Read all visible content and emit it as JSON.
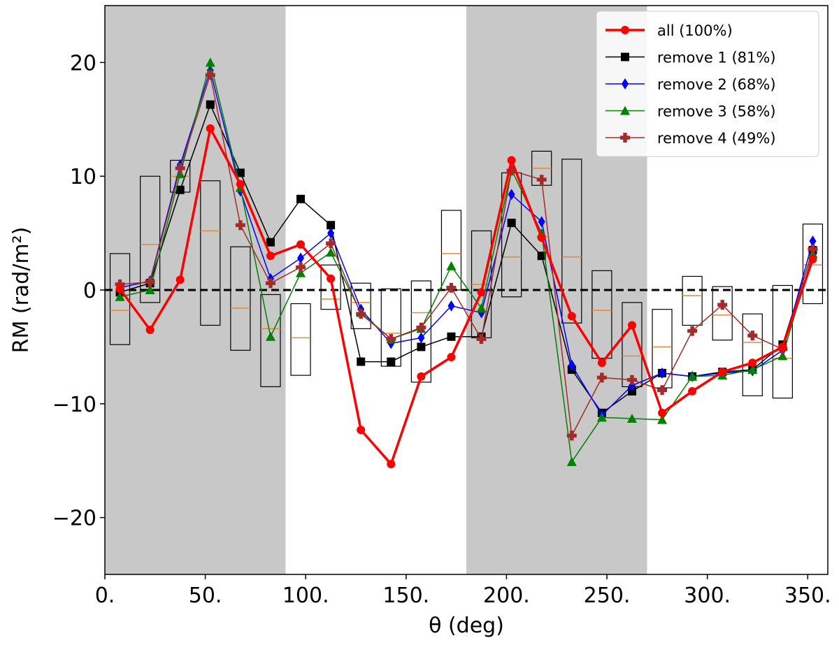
{
  "chart_data": {
    "type": "line",
    "xlabel": "θ (deg)",
    "ylabel": "RM (rad/m²)",
    "xlim": [
      0,
      360
    ],
    "ylim": [
      -25,
      25
    ],
    "xticks": [
      0,
      50,
      100,
      150,
      200,
      250,
      300,
      350
    ],
    "xtick_labels": [
      "0.",
      "50.",
      "100.",
      "150.",
      "200.",
      "250.",
      "300.",
      "350."
    ],
    "yticks": [
      -20,
      -10,
      0,
      10,
      20
    ],
    "ytick_labels": [
      "−20",
      "−10",
      "0",
      "10",
      "20"
    ],
    "shaded_ranges": [
      [
        0,
        90
      ],
      [
        180,
        270
      ]
    ],
    "zero_line": 0,
    "legend_position": "top-right",
    "colors": {
      "shade": "#c8c8c8",
      "box_edge": "#000000",
      "median": "#e08a3c",
      "zero_line": "#000000"
    },
    "boxes": {
      "x": [
        7.5,
        22.5,
        37.5,
        52.5,
        67.5,
        82.5,
        97.5,
        112.5,
        127.5,
        142.5,
        157.5,
        172.5,
        187.5,
        202.5,
        217.5,
        232.5,
        247.5,
        262.5,
        277.5,
        292.5,
        307.5,
        322.5,
        337.5,
        352.5
      ],
      "low": [
        -4.8,
        -1.1,
        8.6,
        -3.1,
        -5.3,
        -8.5,
        -7.5,
        -1.7,
        -3.4,
        -6.7,
        -8.1,
        0.0,
        -4.2,
        -0.6,
        9.2,
        -2.9,
        -6.0,
        -8.5,
        -8.6,
        -3.1,
        -4.4,
        -9.3,
        -9.5,
        -1.2
      ],
      "high": [
        3.2,
        10.0,
        11.4,
        9.6,
        3.8,
        -0.4,
        -1.2,
        2.2,
        0.6,
        0.1,
        0.8,
        7.0,
        5.2,
        10.3,
        12.2,
        11.5,
        1.7,
        -1.1,
        -1.7,
        1.2,
        0.3,
        -2.1,
        0.4,
        5.8
      ],
      "median": [
        -1.8,
        4.0,
        10.0,
        5.2,
        -1.6,
        -3.4,
        -4.2,
        -0.8,
        -1.1,
        -3.8,
        -2.0,
        3.2,
        0.5,
        2.9,
        10.7,
        2.9,
        -1.8,
        -5.8,
        -5.0,
        -0.5,
        -2.2,
        -4.6,
        -6.0,
        2.2
      ]
    },
    "series": [
      {
        "name": "all (100%)",
        "color": "#ff0000",
        "marker": "circle",
        "line_width": 3.5,
        "x": [
          7.5,
          22.5,
          37.5,
          52.5,
          67.5,
          82.5,
          97.5,
          112.5,
          127.5,
          142.5,
          157.5,
          172.5,
          187.5,
          202.5,
          217.5,
          232.5,
          247.5,
          262.5,
          277.5,
          292.5,
          307.5,
          322.5,
          337.5,
          352.5
        ],
        "y": [
          0.1,
          -3.5,
          0.9,
          14.2,
          9.3,
          3.0,
          4.0,
          1.0,
          -12.3,
          -15.3,
          -7.6,
          -5.9,
          -0.2,
          11.4,
          4.6,
          -2.3,
          -6.4,
          -3.1,
          -10.8,
          -8.9,
          -7.2,
          -6.4,
          -5.0,
          2.7
        ]
      },
      {
        "name": "remove 1 (81%)",
        "color": "#000000",
        "marker": "square",
        "line_width": 1.5,
        "x": [
          7.5,
          22.5,
          37.5,
          52.5,
          67.5,
          82.5,
          97.5,
          112.5,
          127.5,
          142.5,
          157.5,
          172.5,
          187.5,
          202.5,
          217.5,
          232.5,
          247.5,
          262.5,
          277.5,
          292.5,
          307.5,
          322.5,
          337.5,
          352.5
        ],
        "y": [
          -0.2,
          0.6,
          8.8,
          16.3,
          10.3,
          4.2,
          8.0,
          5.7,
          -6.3,
          -6.3,
          -5.0,
          -4.1,
          -4.1,
          5.9,
          3.0,
          -7.0,
          -10.8,
          -8.9,
          -7.3,
          -7.6,
          -7.2,
          -7.0,
          -4.8,
          3.5
        ]
      },
      {
        "name": "remove 2 (68%)",
        "color": "#0000ff",
        "marker": "diamond",
        "line_width": 1.5,
        "x": [
          7.5,
          22.5,
          37.5,
          52.5,
          67.5,
          82.5,
          97.5,
          112.5,
          127.5,
          142.5,
          157.5,
          172.5,
          187.5,
          202.5,
          217.5,
          232.5,
          247.5,
          262.5,
          277.5,
          292.5,
          307.5,
          322.5,
          337.5,
          352.5
        ],
        "y": [
          0.2,
          0.8,
          11.0,
          19.3,
          8.7,
          1.0,
          2.8,
          5.0,
          -1.7,
          -4.7,
          -4.2,
          -1.4,
          -2.0,
          8.4,
          6.0,
          -6.6,
          -11.0,
          -8.4,
          -7.3,
          -7.6,
          -7.3,
          -7.1,
          -5.3,
          4.3
        ]
      },
      {
        "name": "remove 3 (58%)",
        "color": "#008000",
        "marker": "triangle",
        "line_width": 1.5,
        "x": [
          7.5,
          22.5,
          37.5,
          52.5,
          67.5,
          82.5,
          97.5,
          112.5,
          127.5,
          142.5,
          157.5,
          172.5,
          187.5,
          202.5,
          217.5,
          232.5,
          247.5,
          262.5,
          277.5,
          292.5,
          307.5,
          322.5,
          337.5,
          352.5
        ],
        "y": [
          -0.6,
          0.0,
          10.2,
          20.0,
          9.0,
          -4.1,
          1.5,
          3.3,
          -2.0,
          -4.3,
          -3.4,
          2.1,
          -1.6,
          10.6,
          5.0,
          -15.1,
          -11.2,
          -11.3,
          -11.4,
          -7.6,
          -7.5,
          -7.0,
          -5.8,
          3.2
        ]
      },
      {
        "name": "remove 4 (49%)",
        "color": "#a52a2a",
        "marker": "plus",
        "line_width": 1.5,
        "x": [
          7.5,
          22.5,
          37.5,
          52.5,
          67.5,
          82.5,
          97.5,
          112.5,
          127.5,
          142.5,
          157.5,
          172.5,
          187.5,
          202.5,
          217.5,
          232.5,
          247.5,
          262.5,
          277.5,
          292.5,
          307.5,
          322.5,
          337.5,
          352.5
        ],
        "y": [
          0.5,
          0.7,
          10.7,
          18.9,
          5.7,
          0.6,
          2.0,
          4.1,
          -2.1,
          -4.3,
          -3.3,
          0.2,
          -4.3,
          10.5,
          9.7,
          -12.8,
          -7.7,
          -7.9,
          -8.8,
          -3.6,
          -1.3,
          -4.0,
          -5.2,
          3.6
        ]
      }
    ]
  }
}
